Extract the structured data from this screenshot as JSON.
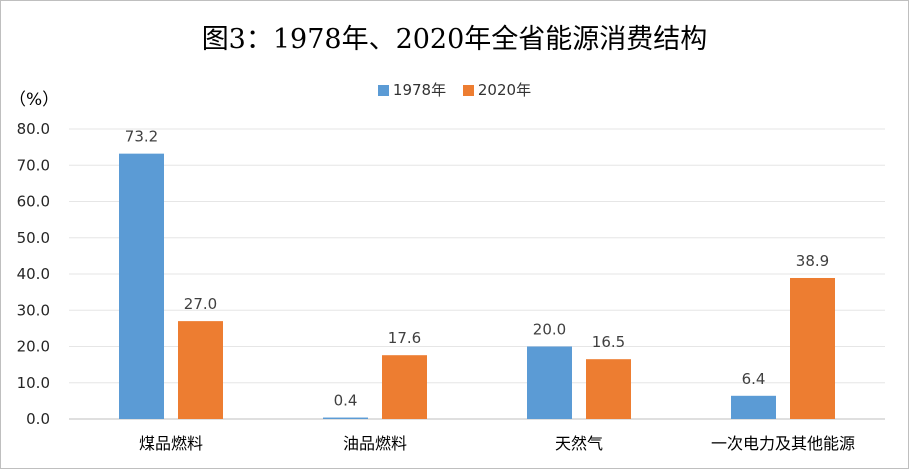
{
  "chart_data": {
    "type": "bar",
    "title": "图3：1978年、2020年全省能源消费结构",
    "ylabel": "（%）",
    "categories": [
      "煤品燃料",
      "油品燃料",
      "天然气",
      "一次电力及其他能源"
    ],
    "series": [
      {
        "name": "1978年",
        "color": "#5b9bd5",
        "values": [
          73.2,
          0.4,
          20.0,
          6.4
        ],
        "labels": [
          "73.2",
          "0.4",
          "20.0",
          "6.4"
        ]
      },
      {
        "name": "2020年",
        "color": "#ed7d31",
        "values": [
          27.0,
          17.6,
          16.5,
          38.9
        ],
        "labels": [
          "27.0",
          "17.6",
          "16.5",
          "38.9"
        ]
      }
    ],
    "ylim": [
      0,
      80
    ],
    "yticks": [
      "0.0",
      "10.0",
      "20.0",
      "30.0",
      "40.0",
      "50.0",
      "60.0",
      "70.0",
      "80.0"
    ],
    "grid": true,
    "legend_position": "top-center"
  }
}
